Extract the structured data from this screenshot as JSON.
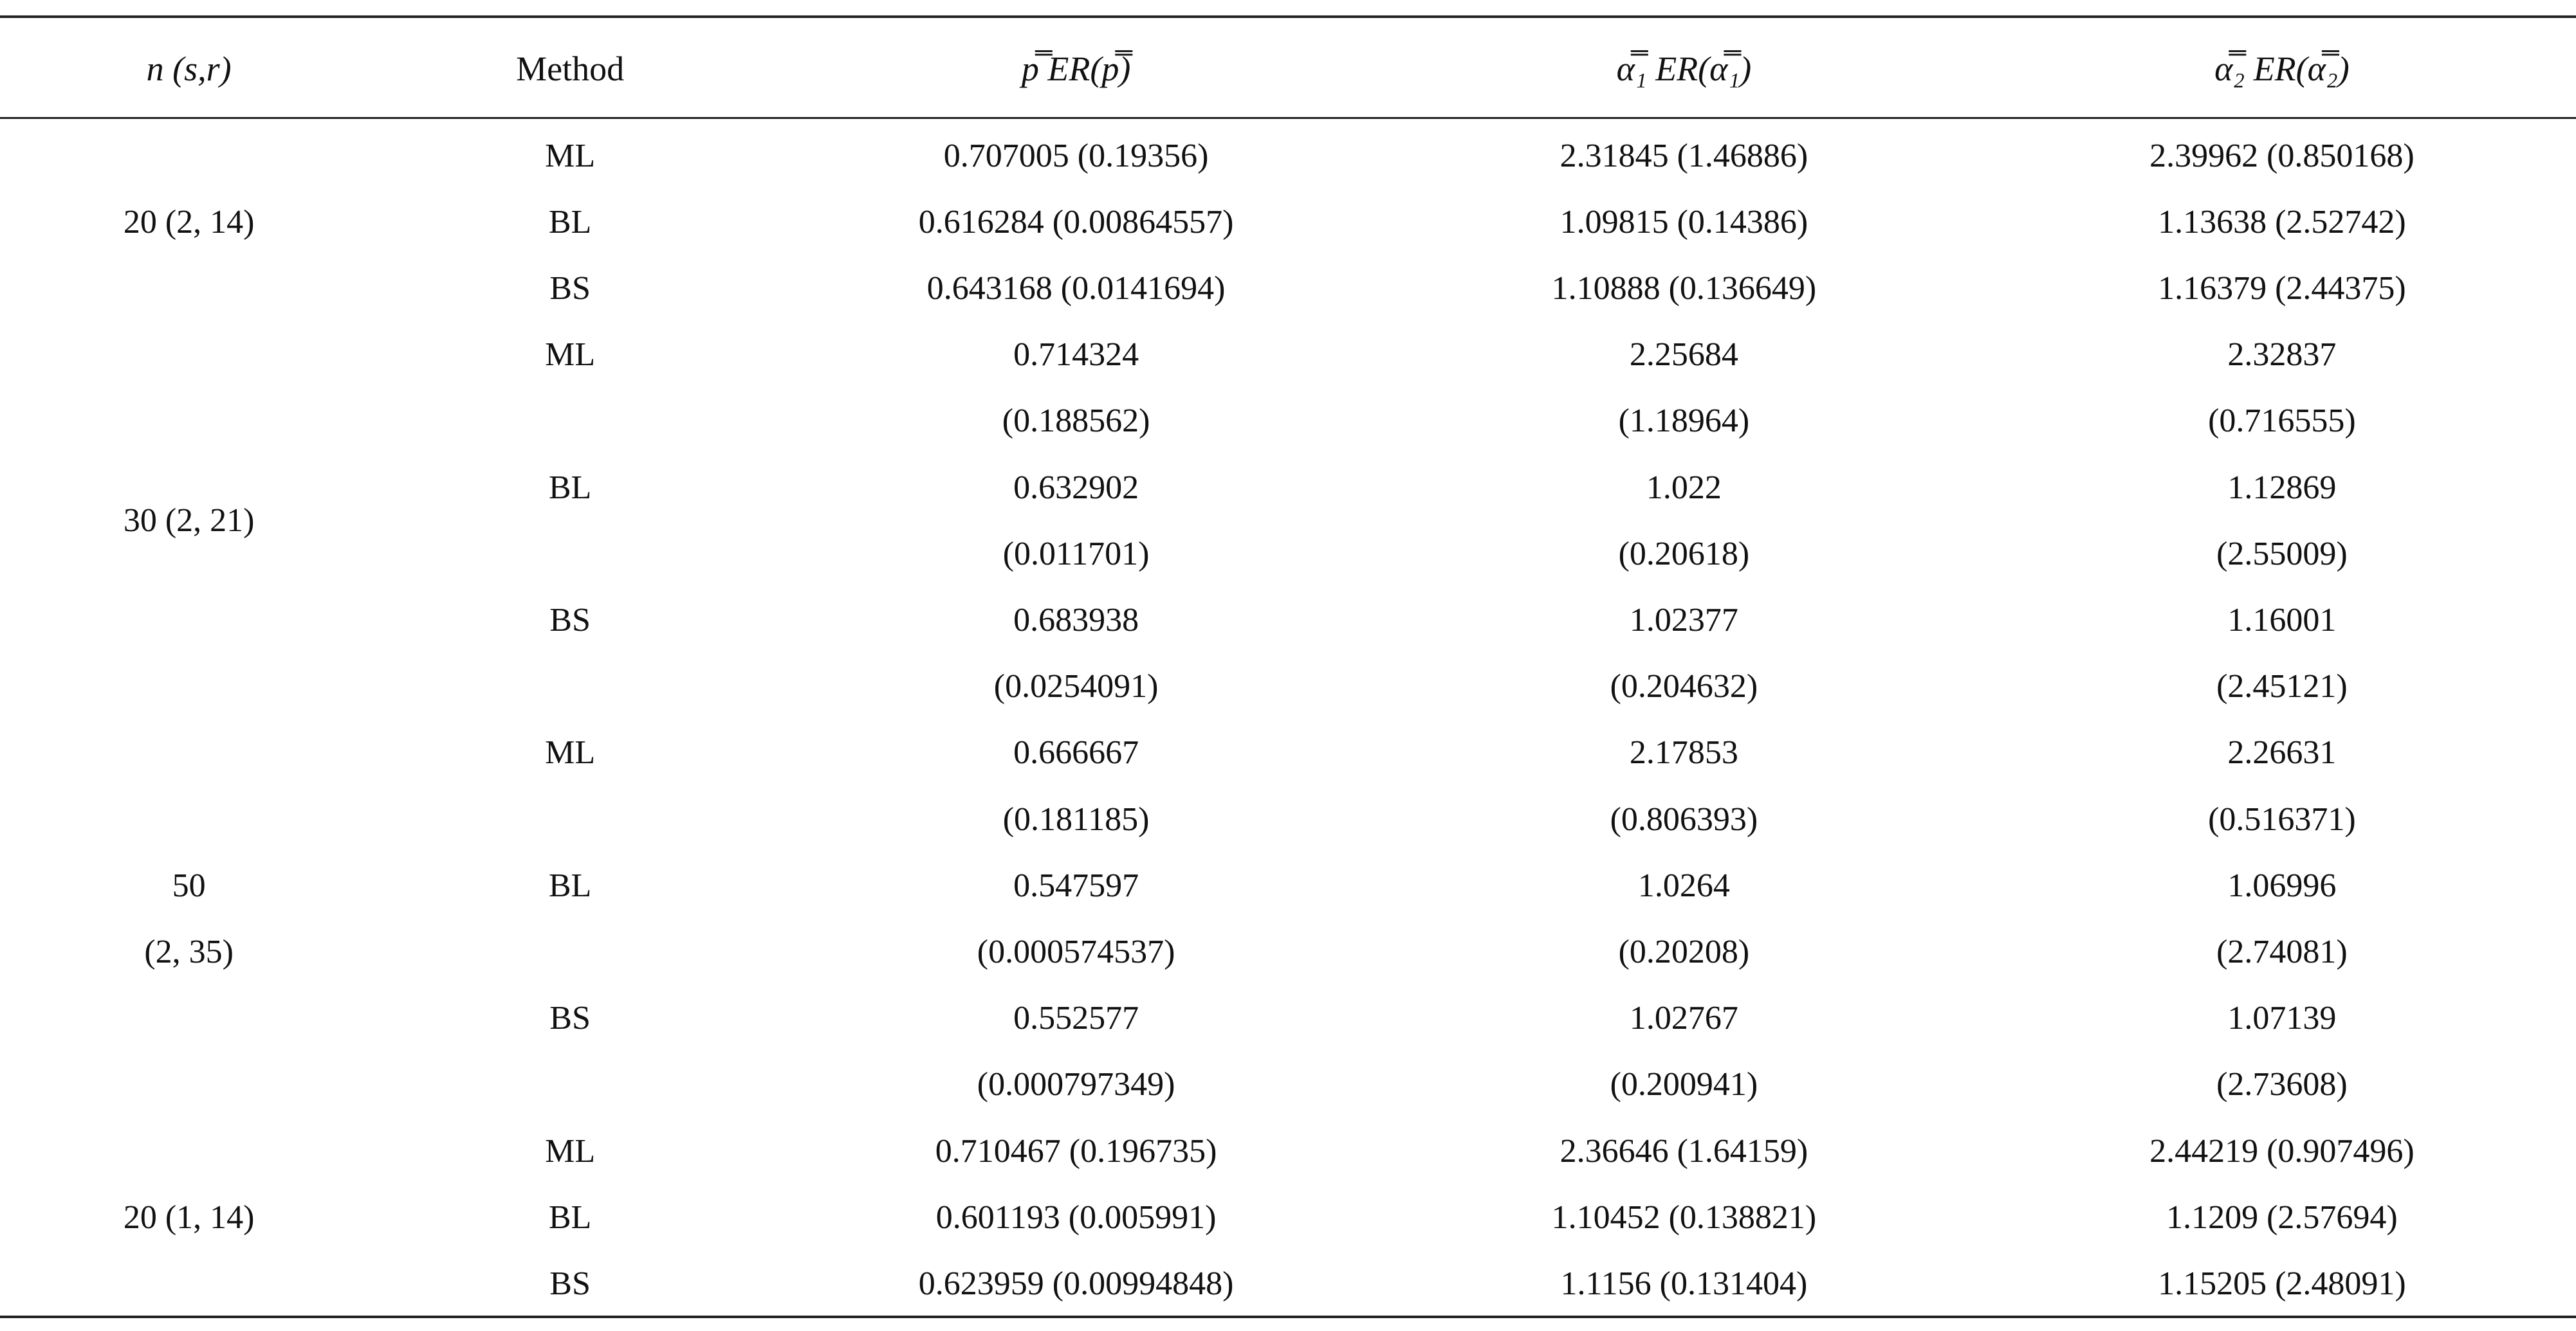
{
  "table": {
    "header": [
      "n (s,r)",
      "Method",
      "p̿   ER(p̿)",
      "α̿₁   ER(α̿₁)",
      "α̿₂  ER(α̿₂)"
    ],
    "groups": [
      {
        "label": [
          "20 (2, 14)"
        ],
        "rows": [
          {
            "method": "ML",
            "cells": [
              [
                "0.707005 (0.19356)"
              ],
              [
                "2.31845 (1.46886)"
              ],
              [
                "2.39962 (0.850168)"
              ]
            ]
          },
          {
            "method": "BL",
            "cells": [
              [
                "0.616284 (0.00864557)"
              ],
              [
                "1.09815 (0.14386)"
              ],
              [
                "1.13638 (2.52742)"
              ]
            ]
          },
          {
            "method": "BS",
            "cells": [
              [
                "0.643168 (0.0141694)"
              ],
              [
                "1.10888 (0.136649)"
              ],
              [
                "1.16379 (2.44375)"
              ]
            ]
          }
        ]
      },
      {
        "label": [
          "30 (2, 21)"
        ],
        "rows": [
          {
            "method": "ML",
            "cells": [
              [
                "0.714324",
                "(0.188562)"
              ],
              [
                "2.25684",
                "(1.18964)"
              ],
              [
                "2.32837",
                "(0.716555)"
              ]
            ]
          },
          {
            "method": "BL",
            "cells": [
              [
                "0.632902",
                "(0.011701)"
              ],
              [
                "1.022",
                "(0.20618)"
              ],
              [
                "1.12869",
                "(2.55009)"
              ]
            ]
          },
          {
            "method": "BS",
            "cells": [
              [
                "0.683938",
                "(0.0254091)"
              ],
              [
                "1.02377",
                "(0.204632)"
              ],
              [
                "1.16001",
                "(2.45121)"
              ]
            ]
          }
        ]
      },
      {
        "label": [
          "50",
          "(2, 35)"
        ],
        "rows": [
          {
            "method": "ML",
            "cells": [
              [
                "0.666667",
                "(0.181185)"
              ],
              [
                "2.17853",
                "(0.806393)"
              ],
              [
                "2.26631",
                "(0.516371)"
              ]
            ]
          },
          {
            "method": "BL",
            "cells": [
              [
                "0.547597",
                "(0.000574537)"
              ],
              [
                "1.0264",
                "(0.20208)"
              ],
              [
                "1.06996",
                "(2.74081)"
              ]
            ]
          },
          {
            "method": "BS",
            "cells": [
              [
                "0.552577",
                "(0.000797349)"
              ],
              [
                "1.02767",
                "(0.200941)"
              ],
              [
                "1.07139",
                "(2.73608)"
              ]
            ]
          }
        ]
      },
      {
        "label": [
          "20 (1, 14)"
        ],
        "rows": [
          {
            "method": "ML",
            "cells": [
              [
                "0.710467 (0.196735)"
              ],
              [
                "2.36646 (1.64159)"
              ],
              [
                "2.44219 (0.907496)"
              ]
            ]
          },
          {
            "method": "BL",
            "cells": [
              [
                "0.601193 (0.005991)"
              ],
              [
                "1.10452 (0.138821)"
              ],
              [
                "1.1209 (2.57694)"
              ]
            ]
          },
          {
            "method": "BS",
            "cells": [
              [
                "0.623959 (0.00994848)"
              ],
              [
                "1.1156 (0.131404)"
              ],
              [
                "1.15205 (2.48091)"
              ]
            ]
          }
        ]
      }
    ]
  }
}
